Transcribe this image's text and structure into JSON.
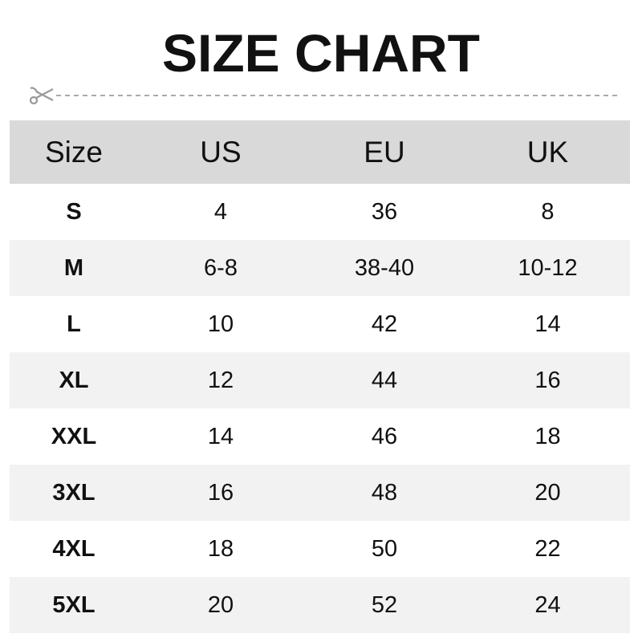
{
  "title": "SIZE CHART",
  "colors": {
    "header_bg": "#d9d9d9",
    "alt_row_bg": "#f2f2f2",
    "cut_line": "#999999"
  },
  "icons": {
    "cut_line": "scissors-icon"
  },
  "chart_data": {
    "type": "table",
    "title": "SIZE CHART",
    "columns": [
      "Size",
      "US",
      "EU",
      "UK"
    ],
    "rows": [
      [
        "S",
        "4",
        "36",
        "8"
      ],
      [
        "M",
        "6-8",
        "38-40",
        "10-12"
      ],
      [
        "L",
        "10",
        "42",
        "14"
      ],
      [
        "XL",
        "12",
        "44",
        "16"
      ],
      [
        "XXL",
        "14",
        "46",
        "18"
      ],
      [
        "3XL",
        "16",
        "48",
        "20"
      ],
      [
        "4XL",
        "18",
        "50",
        "22"
      ],
      [
        "5XL",
        "20",
        "52",
        "24"
      ]
    ]
  }
}
